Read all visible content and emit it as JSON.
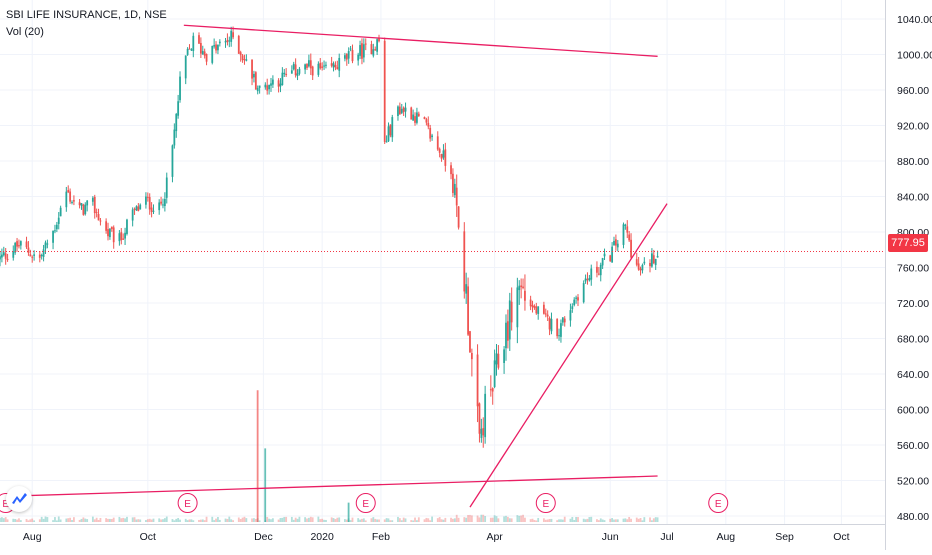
{
  "chart_data": {
    "type": "candlestick",
    "symbol_line": "SBI LIFE INSURANCE, 1D, NSE",
    "volume_label": "Vol (20)",
    "last_price": "777.95",
    "y_axis": {
      "range": [
        460,
        1050
      ],
      "ticks": [
        "1040.00",
        "1000.00",
        "960.00",
        "920.00",
        "880.00",
        "840.00",
        "800.00",
        "760.00",
        "720.00",
        "680.00",
        "640.00",
        "600.00",
        "560.00",
        "520.00",
        "480.00"
      ],
      "tick_values": [
        1040,
        1000,
        960,
        920,
        880,
        840,
        800,
        760,
        720,
        680,
        640,
        600,
        560,
        520,
        480
      ]
    },
    "x_axis": {
      "range": [
        "2019-07-15",
        "2020-10-24"
      ],
      "ticks": [
        {
          "label": "Aug",
          "date": "2019-08-01"
        },
        {
          "label": "Oct",
          "date": "2019-10-01"
        },
        {
          "label": "Dec",
          "date": "2019-12-01"
        },
        {
          "label": "2020",
          "date": "2020-01-01"
        },
        {
          "label": "Feb",
          "date": "2020-02-01"
        },
        {
          "label": "Apr",
          "date": "2020-04-01"
        },
        {
          "label": "Jun",
          "date": "2020-06-01"
        },
        {
          "label": "Jul",
          "date": "2020-07-01"
        },
        {
          "label": "Aug",
          "date": "2020-08-01"
        },
        {
          "label": "Sep",
          "date": "2020-09-01"
        },
        {
          "label": "Oct",
          "date": "2020-10-01"
        }
      ]
    },
    "price_path": [
      [
        "2019-07-15",
        770
      ],
      [
        "2019-07-25",
        785
      ],
      [
        "2019-08-05",
        770
      ],
      [
        "2019-08-12",
        800
      ],
      [
        "2019-08-19",
        845
      ],
      [
        "2019-08-26",
        825
      ],
      [
        "2019-09-02",
        830
      ],
      [
        "2019-09-09",
        800
      ],
      [
        "2019-09-16",
        790
      ],
      [
        "2019-09-23",
        820
      ],
      [
        "2019-09-30",
        835
      ],
      [
        "2019-10-07",
        825
      ],
      [
        "2019-10-12",
        860
      ],
      [
        "2019-10-16",
        930
      ],
      [
        "2019-10-19",
        985
      ],
      [
        "2019-10-25",
        1015
      ],
      [
        "2019-11-01",
        1000
      ],
      [
        "2019-11-08",
        1010
      ],
      [
        "2019-11-15",
        1020
      ],
      [
        "2019-11-22",
        990
      ],
      [
        "2019-11-29",
        960
      ],
      [
        "2019-12-06",
        970
      ],
      [
        "2019-12-13",
        975
      ],
      [
        "2019-12-20",
        985
      ],
      [
        "2019-12-27",
        985
      ],
      [
        "2020-01-03",
        980
      ],
      [
        "2020-01-10",
        990
      ],
      [
        "2020-01-17",
        1000
      ],
      [
        "2020-01-24",
        1005
      ],
      [
        "2020-01-31",
        1015
      ],
      [
        "2020-02-03",
        900
      ],
      [
        "2020-02-10",
        940
      ],
      [
        "2020-02-17",
        935
      ],
      [
        "2020-02-24",
        920
      ],
      [
        "2020-03-02",
        895
      ],
      [
        "2020-03-09",
        870
      ],
      [
        "2020-03-13",
        800
      ],
      [
        "2020-03-17",
        730
      ],
      [
        "2020-03-20",
        650
      ],
      [
        "2020-03-24",
        560
      ],
      [
        "2020-03-27",
        600
      ],
      [
        "2020-03-31",
        625
      ],
      [
        "2020-04-07",
        690
      ],
      [
        "2020-04-14",
        740
      ],
      [
        "2020-04-21",
        715
      ],
      [
        "2020-04-28",
        700
      ],
      [
        "2020-05-05",
        690
      ],
      [
        "2020-05-12",
        720
      ],
      [
        "2020-05-19",
        745
      ],
      [
        "2020-05-26",
        760
      ],
      [
        "2020-06-01",
        775
      ],
      [
        "2020-06-05",
        790
      ],
      [
        "2020-06-09",
        805
      ],
      [
        "2020-06-12",
        780
      ],
      [
        "2020-06-16",
        755
      ],
      [
        "2020-06-19",
        760
      ],
      [
        "2020-06-23",
        770
      ],
      [
        "2020-06-26",
        778
      ]
    ],
    "volume_spikes": [
      {
        "date": "2019-11-28",
        "value": 17,
        "color": "#ef5350"
      },
      {
        "date": "2019-12-02",
        "value": 9.5,
        "color": "#26a69a"
      },
      {
        "date": "2020-01-15",
        "value": 2.5,
        "color": "#26a69a"
      }
    ],
    "volume_range": [
      0,
      20
    ],
    "trendlines": [
      {
        "color": "#e91e63",
        "from": [
          "2019-10-20",
          1033
        ],
        "to": [
          "2020-06-26",
          998
        ]
      },
      {
        "color": "#e91e63",
        "from": [
          "2019-07-15",
          502
        ],
        "to": [
          "2020-06-26",
          525
        ]
      },
      {
        "color": "#e91e63",
        "from": [
          "2020-03-19",
          490
        ],
        "to": [
          "2020-07-01",
          832
        ]
      }
    ],
    "price_line": {
      "value": 778,
      "color": "#f23645"
    },
    "earnings_events": [
      {
        "date": "2019-07-18",
        "label": "E"
      },
      {
        "date": "2019-10-22",
        "label": "E"
      },
      {
        "date": "2020-01-24",
        "label": "E"
      },
      {
        "date": "2020-04-28",
        "label": "E"
      },
      {
        "date": "2020-07-28",
        "label": "E"
      }
    ],
    "colors": {
      "up": "#26a69a",
      "down": "#ef5350",
      "grid": "#f0f3fa",
      "axis_text": "#131722",
      "event": "#e91e63"
    },
    "grid": true
  }
}
